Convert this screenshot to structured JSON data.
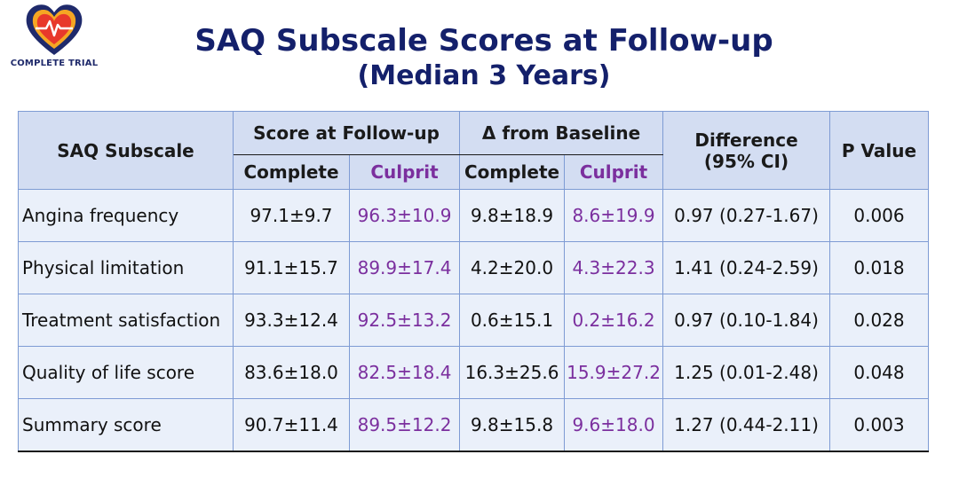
{
  "logo": {
    "text": "COMPLETE TRIAL",
    "icon": "heart-ecg-icon"
  },
  "title": {
    "line1": "SAQ Subscale Scores at Follow-up",
    "line2": "(Median 3 Years)"
  },
  "table": {
    "headers": {
      "subscale": "SAQ Subscale",
      "score_group": "Score at Follow-up",
      "delta_group": "Δ from Baseline",
      "difference": "Difference",
      "difference_ci": "(95% CI)",
      "p_value": "P Value",
      "complete": "Complete",
      "culprit": "Culprit"
    },
    "rows": [
      {
        "subscale": "Angina frequency",
        "score_complete": "97.1±9.7",
        "score_culprit": "96.3±10.9",
        "delta_complete": "9.8±18.9",
        "delta_culprit": "8.6±19.9",
        "difference": "0.97 (0.27-1.67)",
        "p": "0.006"
      },
      {
        "subscale": "Physical limitation",
        "score_complete": "91.1±15.7",
        "score_culprit": "89.9±17.4",
        "delta_complete": "4.2±20.0",
        "delta_culprit": "4.3±22.3",
        "difference": "1.41 (0.24-2.59)",
        "p": "0.018"
      },
      {
        "subscale": "Treatment satisfaction",
        "score_complete": "93.3±12.4",
        "score_culprit": "92.5±13.2",
        "delta_complete": "0.6±15.1",
        "delta_culprit": "0.2±16.2",
        "difference": "0.97 (0.10-1.84)",
        "p": "0.028"
      },
      {
        "subscale": "Quality of life score",
        "score_complete": "83.6±18.0",
        "score_culprit": "82.5±18.4",
        "delta_complete": "16.3±25.6",
        "delta_culprit": "15.9±27.2",
        "difference": "1.25 (0.01-2.48)",
        "p": "0.048"
      },
      {
        "subscale": "Summary score",
        "score_complete": "90.7±11.4",
        "score_culprit": "89.5±12.2",
        "delta_complete": "9.8±15.8",
        "delta_culprit": "9.6±18.0",
        "difference": "1.27 (0.44-2.11)",
        "p": "0.003"
      }
    ]
  },
  "colors": {
    "title": "#14206b",
    "culprit": "#7b2f9e",
    "header_bg": "#d3ddf2",
    "cell_bg": "#eaf0fa",
    "border": "#7e9bd4"
  }
}
